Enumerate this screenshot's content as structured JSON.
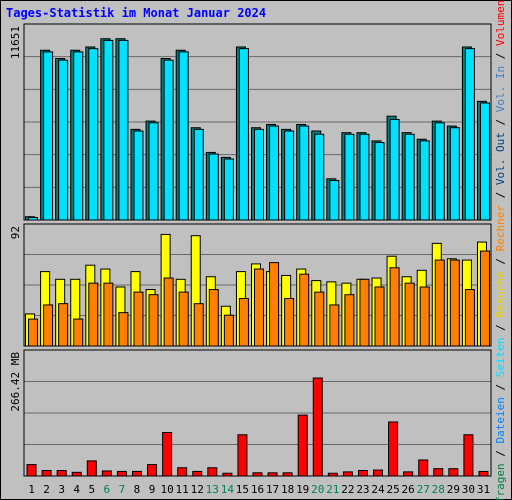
{
  "chart_data": [
    {
      "type": "bar",
      "title": "Tages-Statistik im Monat Januar 2024",
      "panel": "Anfragen / Dateien",
      "y_axis_label": "11651",
      "ylim": [
        0,
        11651
      ],
      "categories": [
        "1",
        "2",
        "3",
        "4",
        "5",
        "6",
        "7",
        "8",
        "9",
        "10",
        "11",
        "12",
        "13",
        "14",
        "15",
        "16",
        "17",
        "18",
        "19",
        "20",
        "21",
        "22",
        "23",
        "24",
        "25",
        "26",
        "27",
        "28",
        "29",
        "30",
        "31"
      ],
      "weekend_days": [
        "6",
        "7",
        "13",
        "14",
        "20",
        "21",
        "27",
        "28"
      ],
      "series": [
        {
          "name": "Anfragen",
          "color": "#008040",
          "values": [
            200,
            10300,
            9800,
            10300,
            10500,
            11000,
            11000,
            5500,
            6000,
            9800,
            10300,
            5600,
            4100,
            3800,
            10500,
            5600,
            5800,
            5500,
            5800,
            5400,
            2500,
            5300,
            5300,
            4800,
            6300,
            5300,
            4900,
            6000,
            5700,
            10500,
            7200
          ]
        },
        {
          "name": "Dateien",
          "color": "#0080ff",
          "values": [
            150,
            10200,
            9700,
            10200,
            10400,
            10900,
            10900,
            5400,
            5900,
            9700,
            10200,
            5500,
            4000,
            3700,
            10400,
            5500,
            5700,
            5400,
            5700,
            5200,
            2400,
            5200,
            5200,
            4700,
            6100,
            5200,
            4800,
            5900,
            5600,
            10400,
            7100
          ]
        }
      ]
    },
    {
      "type": "bar",
      "panel": "Seiten / Besuche / Rechner",
      "y_axis_label": "92",
      "ylim": [
        0,
        92
      ],
      "series": [
        {
          "name": "Seiten",
          "color": "#00e0ff",
          "values": []
        },
        {
          "name": "Besuche",
          "color": "#ffff00",
          "values": [
            25,
            58,
            52,
            52,
            63,
            60,
            46,
            58,
            44,
            87,
            52,
            86,
            54,
            31,
            58,
            64,
            58,
            55,
            60,
            51,
            50,
            49,
            52,
            53,
            70,
            54,
            59,
            80,
            68,
            67,
            81
          ]
        },
        {
          "name": "Rechner",
          "color": "#ff8000",
          "values": [
            21,
            32,
            33,
            21,
            49,
            49,
            26,
            42,
            40,
            53,
            42,
            33,
            44,
            24,
            37,
            60,
            65,
            37,
            56,
            42,
            32,
            40,
            52,
            46,
            61,
            49,
            46,
            67,
            67,
            44,
            74
          ]
        }
      ]
    },
    {
      "type": "bar",
      "panel": "Volumen / Vol. In / Vol. Out",
      "y_axis_label": "266.42 MB",
      "ylim": [
        0,
        266.42
      ],
      "series": [
        {
          "name": "Volumen",
          "color": "#ff0000",
          "values": [
            25,
            12,
            12,
            8,
            33,
            11,
            10,
            10,
            25,
            95,
            18,
            10,
            18,
            6,
            90,
            7,
            7,
            7,
            133,
            214,
            6,
            9,
            12,
            13,
            118,
            9,
            35,
            16,
            16,
            90,
            10
          ]
        },
        {
          "name": "Vol. In",
          "color": "#4080c0",
          "values": []
        },
        {
          "name": "Vol. Out",
          "color": "#004080",
          "values": []
        }
      ]
    }
  ],
  "right_labels": [
    [
      {
        "text": "Anfragen",
        "color": "#008040"
      },
      {
        "text": " / ",
        "color": "#000000"
      },
      {
        "text": "Dateien",
        "color": "#0080ff"
      },
      {
        "text": " / ",
        "color": "#000000"
      },
      {
        "text": "Seiten",
        "color": "#00e0ff"
      },
      {
        "text": " / ",
        "color": "#000000"
      },
      {
        "text": "Besuche",
        "color": "#e8d000"
      },
      {
        "text": " / ",
        "color": "#000000"
      },
      {
        "text": "Rechner",
        "color": "#ff8000"
      },
      {
        "text": " / ",
        "color": "#000000"
      },
      {
        "text": "Vol. Out",
        "color": "#004080"
      },
      {
        "text": " / ",
        "color": "#000000"
      },
      {
        "text": "Vol. In",
        "color": "#4080c0"
      },
      {
        "text": " / ",
        "color": "#000000"
      },
      {
        "text": "Volumen",
        "color": "#ff0000"
      }
    ]
  ],
  "colors": {
    "background": "#c0c0c0",
    "title": "#0000ff",
    "weekday_label": "#000000",
    "weekend_label": "#00805a"
  }
}
